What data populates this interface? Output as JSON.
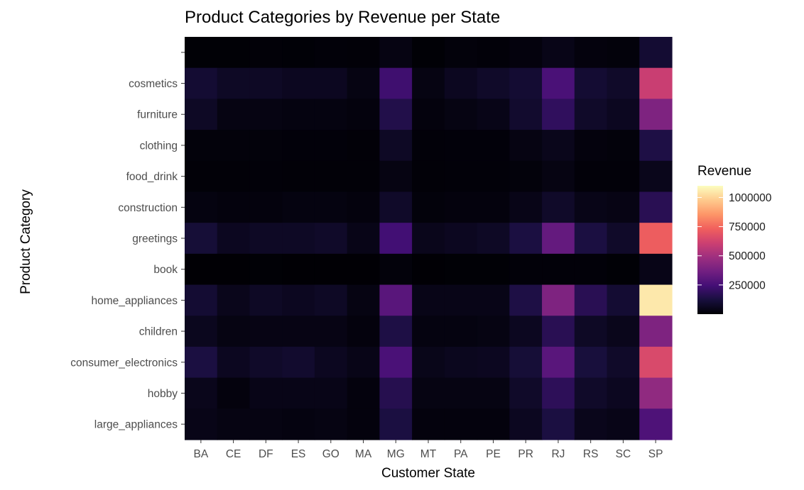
{
  "chart_data": {
    "type": "heatmap",
    "title": "Product Categories by Revenue per State",
    "xlabel": "Customer State",
    "ylabel": "Product Category",
    "x_categories": [
      "BA",
      "CE",
      "DF",
      "ES",
      "GO",
      "MA",
      "MG",
      "MT",
      "PA",
      "PE",
      "PR",
      "RJ",
      "RS",
      "SC",
      "SP"
    ],
    "y_categories": [
      "",
      "cosmetics",
      "furniture",
      "clothing",
      "food_drink",
      "construction",
      "greetings",
      "book",
      "home_appliances",
      "children",
      "consumer_electronics",
      "hobby",
      "large_appliances"
    ],
    "values": [
      [
        5000,
        5000,
        8000,
        6000,
        10000,
        8000,
        30000,
        5000,
        15000,
        10000,
        20000,
        40000,
        20000,
        15000,
        100000
      ],
      [
        100000,
        70000,
        70000,
        60000,
        60000,
        30000,
        230000,
        30000,
        60000,
        80000,
        100000,
        260000,
        100000,
        80000,
        600000
      ],
      [
        70000,
        30000,
        30000,
        25000,
        25000,
        20000,
        150000,
        20000,
        30000,
        40000,
        90000,
        190000,
        80000,
        60000,
        400000
      ],
      [
        15000,
        15000,
        15000,
        12000,
        12000,
        8000,
        70000,
        10000,
        12000,
        12000,
        30000,
        50000,
        20000,
        15000,
        140000
      ],
      [
        8000,
        8000,
        10000,
        8000,
        8000,
        8000,
        30000,
        8000,
        10000,
        10000,
        15000,
        30000,
        10000,
        10000,
        50000
      ],
      [
        25000,
        20000,
        20000,
        25000,
        25000,
        20000,
        80000,
        15000,
        20000,
        20000,
        40000,
        80000,
        40000,
        35000,
        170000
      ],
      [
        110000,
        60000,
        70000,
        70000,
        80000,
        40000,
        240000,
        50000,
        60000,
        70000,
        130000,
        330000,
        130000,
        80000,
        720000
      ],
      [
        3000,
        3000,
        5000,
        3000,
        3000,
        3000,
        15000,
        3000,
        5000,
        5000,
        10000,
        10000,
        10000,
        5000,
        40000
      ],
      [
        100000,
        50000,
        70000,
        60000,
        70000,
        30000,
        300000,
        40000,
        40000,
        40000,
        140000,
        400000,
        170000,
        100000,
        1050000
      ],
      [
        55000,
        30000,
        35000,
        35000,
        35000,
        20000,
        140000,
        25000,
        25000,
        30000,
        60000,
        170000,
        70000,
        50000,
        400000
      ],
      [
        130000,
        60000,
        80000,
        90000,
        60000,
        40000,
        260000,
        45000,
        55000,
        60000,
        110000,
        300000,
        120000,
        80000,
        650000
      ],
      [
        50000,
        20000,
        40000,
        40000,
        40000,
        20000,
        160000,
        30000,
        30000,
        30000,
        80000,
        180000,
        80000,
        60000,
        450000
      ],
      [
        40000,
        30000,
        30000,
        25000,
        30000,
        20000,
        130000,
        20000,
        20000,
        20000,
        60000,
        130000,
        50000,
        40000,
        270000
      ]
    ],
    "legend": {
      "title": "Revenue",
      "ticks": [
        250000,
        500000,
        750000,
        1000000
      ],
      "tick_labels": [
        "250000",
        "500000",
        "750000",
        "1000000"
      ],
      "range": [
        0,
        1100000
      ],
      "placement": "right"
    },
    "colormap": [
      "#000004",
      "#180f3d",
      "#440f76",
      "#721f81",
      "#9e2f7f",
      "#cd4071",
      "#f1605d",
      "#fd9668",
      "#feca8d",
      "#fcfdbf"
    ],
    "grid": false
  }
}
